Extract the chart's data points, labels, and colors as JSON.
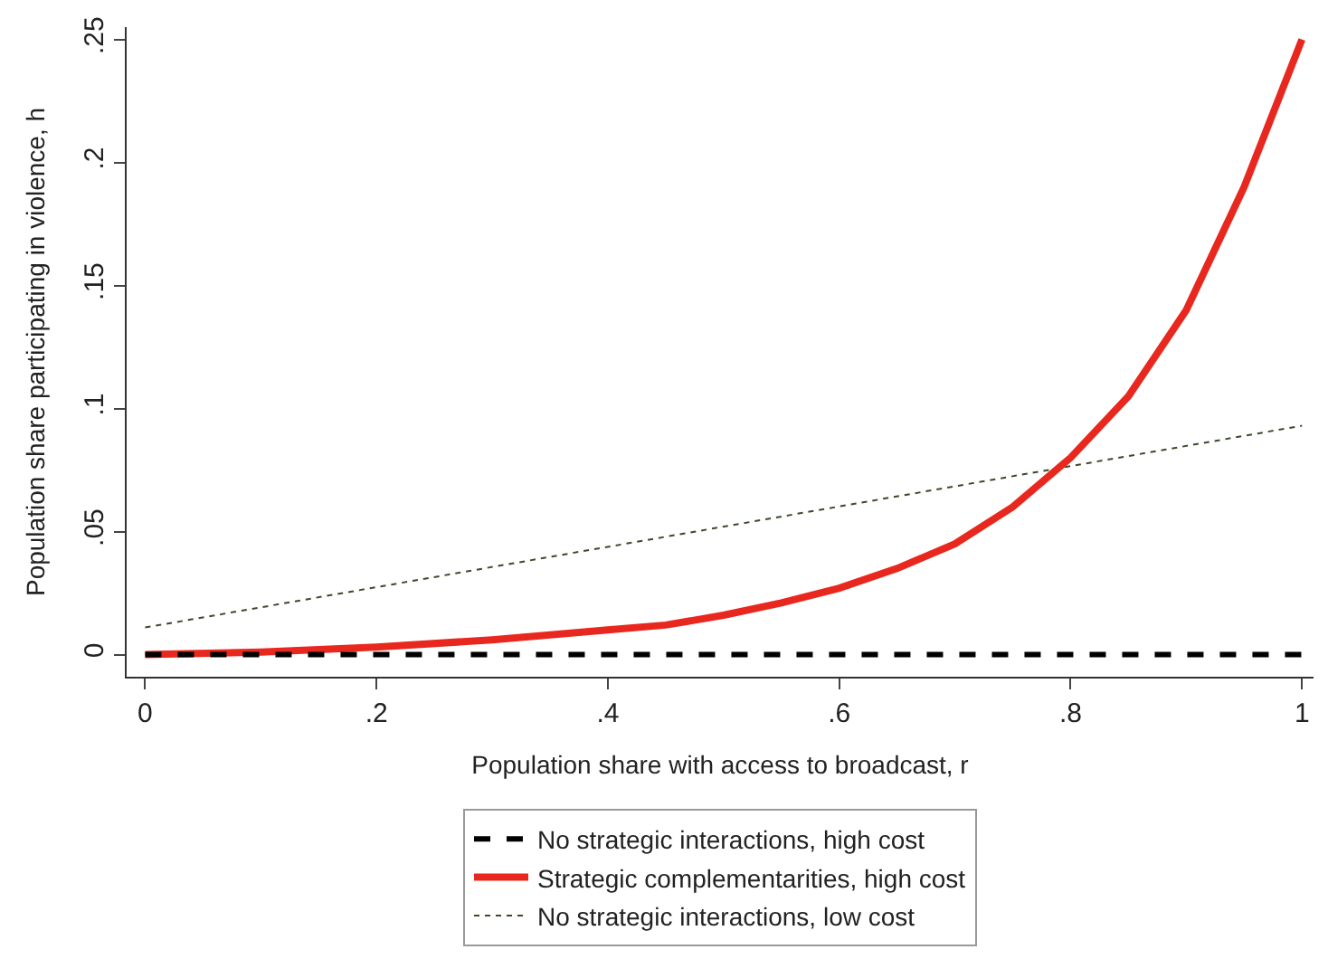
{
  "chart_data": {
    "type": "line",
    "xlabel": "Population share with access to broadcast, r",
    "ylabel": "Population share participating in violence, h",
    "xlim": [
      -0.016,
      1.01
    ],
    "ylim": [
      -0.009,
      0.255
    ],
    "xticks": [
      0,
      {
        "value": 0.2,
        "label": ".2"
      },
      {
        "value": 0.4,
        "label": ".4"
      },
      {
        "value": 0.6,
        "label": ".6"
      },
      {
        "value": 0.8,
        "label": ".8"
      },
      1
    ],
    "yticks": [
      0,
      {
        "value": 0.05,
        "label": ".05"
      },
      {
        "value": 0.1,
        "label": ".1"
      },
      {
        "value": 0.15,
        "label": ".15"
      },
      {
        "value": 0.2,
        "label": ".2"
      },
      {
        "value": 0.25,
        "label": ".25"
      }
    ],
    "legend": "bottom",
    "marker": "none",
    "series": [
      {
        "name": "No strategic interactions, high cost",
        "color": "#000000",
        "line_style": "dashed",
        "x": [
          0,
          1
        ],
        "values": [
          0,
          0
        ]
      },
      {
        "name": "Strategic complementarities, high cost",
        "color": "#e8281e",
        "line_style": "solid",
        "x": [
          0,
          0.1,
          0.2,
          0.3,
          0.4,
          0.45,
          0.5,
          0.55,
          0.6,
          0.65,
          0.7,
          0.75,
          0.8,
          0.85,
          0.9,
          0.95,
          1
        ],
        "values": [
          0,
          0.001,
          0.003,
          0.006,
          0.01,
          0.012,
          0.016,
          0.021,
          0.027,
          0.035,
          0.045,
          0.06,
          0.08,
          0.105,
          0.14,
          0.19,
          0.25
        ]
      },
      {
        "name": "No strategic interactions, low cost",
        "color": "#3a4a2a",
        "line_style": "dotted",
        "x": [
          0,
          1
        ],
        "values": [
          0.011,
          0.093
        ]
      }
    ]
  }
}
